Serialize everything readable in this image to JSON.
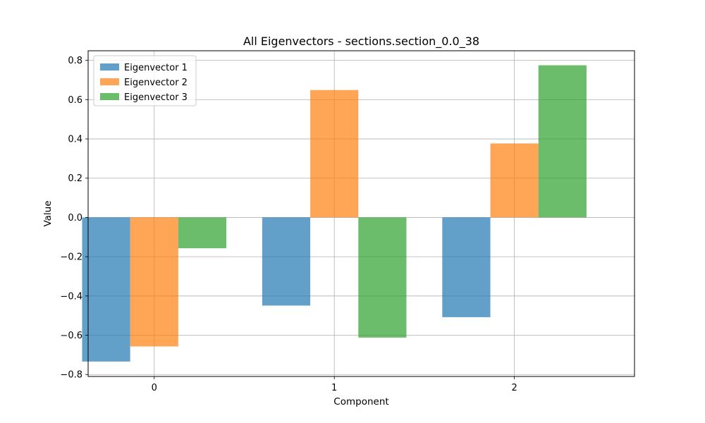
{
  "chart_data": {
    "type": "bar",
    "title": "All Eigenvectors - sections.section_0.0_38",
    "xlabel": "Component",
    "ylabel": "Value",
    "categories": [
      "0",
      "1",
      "2"
    ],
    "series": [
      {
        "name": "Eigenvector 1",
        "color": "#1f77b4",
        "values": [
          -0.734,
          -0.449,
          -0.508
        ]
      },
      {
        "name": "Eigenvector 2",
        "color": "#ff7f0e",
        "values": [
          -0.657,
          0.649,
          0.377
        ]
      },
      {
        "name": "Eigenvector 3",
        "color": "#2ca02c",
        "values": [
          -0.157,
          -0.612,
          0.775
        ]
      }
    ],
    "bar_opacity": 0.7,
    "ylim": [
      -0.81,
      0.849
    ],
    "xlim": [
      -0.367,
      2.667
    ],
    "yticks": [
      -0.8,
      -0.6,
      -0.4,
      -0.2,
      0.0,
      0.2,
      0.4,
      0.6,
      0.8
    ],
    "ytick_labels": [
      "−0.8",
      "−0.6",
      "−0.4",
      "−0.2",
      "0.0",
      "0.2",
      "0.4",
      "0.6",
      "0.8"
    ],
    "grid": true,
    "legend_position": "top-left"
  }
}
